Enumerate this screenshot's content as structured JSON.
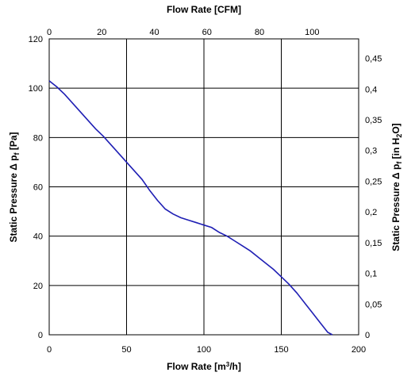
{
  "chart_data": {
    "type": "line",
    "title": "",
    "xlabel_bottom": "Flow Rate [m³/h]",
    "xlabel_top": "Flow Rate [CFM]",
    "ylabel_left": "Static Pressure Δ pf [Pa]",
    "ylabel_right": "Static Pressure Δ pf [in H2O]",
    "xlim_bottom": [
      0,
      200
    ],
    "xlim_top": [
      0,
      117.72
    ],
    "ylim_left": [
      0,
      120
    ],
    "ylim_right": [
      0,
      0.4818
    ],
    "grid": true,
    "x_ticks_bottom": [
      "0",
      "50",
      "100",
      "150",
      "200"
    ],
    "x_ticks_bottom_values": [
      0,
      50,
      100,
      150,
      200
    ],
    "x_ticks_top": [
      "0",
      "20",
      "40",
      "60",
      "80",
      "100"
    ],
    "x_ticks_top_values": [
      0,
      20,
      40,
      60,
      80,
      100
    ],
    "y_ticks_left": [
      "0",
      "20",
      "40",
      "60",
      "80",
      "100",
      "120"
    ],
    "y_ticks_left_values": [
      0,
      20,
      40,
      60,
      80,
      100,
      120
    ],
    "y_ticks_right": [
      "0",
      "0,05",
      "0,1",
      "0,15",
      "0,2",
      "0,25",
      "0,3",
      "0,35",
      "0,4",
      "0,45"
    ],
    "y_ticks_right_values": [
      0,
      0.05,
      0.1,
      0.15,
      0.2,
      0.25,
      0.3,
      0.35,
      0.4,
      0.45
    ],
    "series": [
      {
        "color": "#1f1fb4",
        "x": [
          0,
          5,
          10,
          15,
          20,
          25,
          30,
          35,
          40,
          45,
          50,
          55,
          60,
          65,
          70,
          75,
          80,
          85,
          90,
          95,
          100,
          105,
          110,
          115,
          120,
          125,
          130,
          135,
          140,
          145,
          150,
          155,
          160,
          165,
          170,
          175,
          180,
          183
        ],
        "values": [
          103,
          100.5,
          97.5,
          94,
          90.5,
          87,
          83.5,
          80.5,
          77,
          73.5,
          70,
          66.5,
          63,
          58.5,
          54.5,
          51,
          49,
          47.5,
          46.5,
          45.5,
          44.5,
          43.5,
          41.5,
          40,
          38,
          36,
          34,
          31.5,
          29,
          26.5,
          23.5,
          20.5,
          17,
          13,
          9,
          5,
          1,
          0
        ]
      }
    ]
  }
}
